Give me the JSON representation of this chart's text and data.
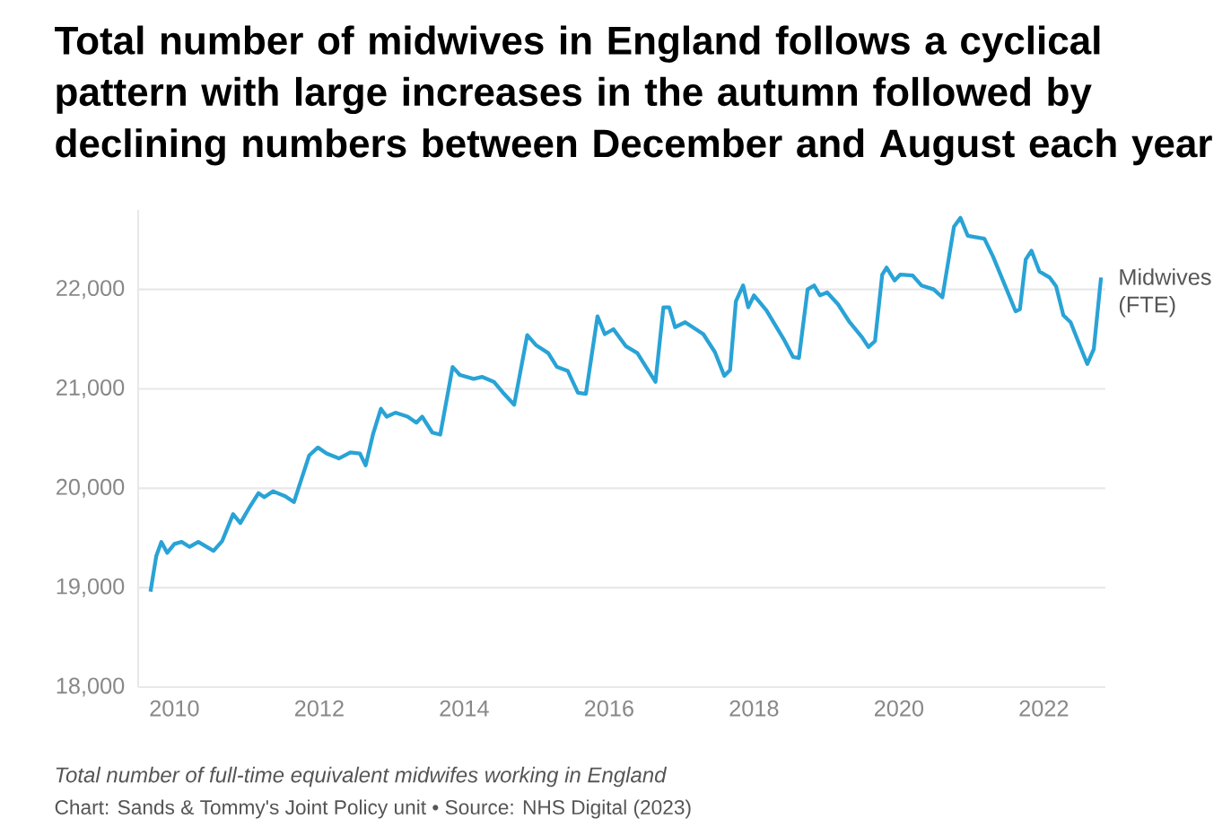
{
  "chart_data": {
    "type": "line",
    "title": "Total number of midwives in England follows a cyclical pattern with large increases in the autumn followed by declining numbers between December and August each year",
    "annotations": [
      "Total number of full-time equivalent midwifes working in England",
      "Chart: Sands & Tommy's Joint Policy unit • Source: NHS Digital (2023)"
    ],
    "x": [
      2009.67,
      2009.75,
      2009.82,
      2009.9,
      2010.0,
      2010.1,
      2010.21,
      2010.33,
      2010.54,
      2010.66,
      2010.81,
      2010.91,
      2011.03,
      2011.16,
      2011.24,
      2011.36,
      2011.53,
      2011.65,
      2011.73,
      2011.86,
      2011.98,
      2012.1,
      2012.27,
      2012.43,
      2012.56,
      2012.64,
      2012.74,
      2012.85,
      2012.93,
      2013.05,
      2013.22,
      2013.34,
      2013.42,
      2013.56,
      2013.67,
      2013.84,
      2013.94,
      2014.13,
      2014.25,
      2014.41,
      2014.55,
      2014.69,
      2014.87,
      2014.99,
      2015.16,
      2015.28,
      2015.43,
      2015.57,
      2015.68,
      2015.84,
      2015.94,
      2016.06,
      2016.23,
      2016.39,
      2016.51,
      2016.64,
      2016.75,
      2016.83,
      2016.91,
      2017.05,
      2017.3,
      2017.46,
      2017.59,
      2017.67,
      2017.75,
      2017.85,
      2017.92,
      2018.0,
      2018.17,
      2018.41,
      2018.54,
      2018.62,
      2018.74,
      2018.83,
      2018.91,
      2019.01,
      2019.16,
      2019.32,
      2019.49,
      2019.58,
      2019.67,
      2019.77,
      2019.83,
      2019.94,
      2020.02,
      2020.19,
      2020.31,
      2020.48,
      2020.6,
      2020.76,
      2020.85,
      2020.95,
      2021.18,
      2021.3,
      2021.47,
      2021.61,
      2021.67,
      2021.75,
      2021.83,
      2021.94,
      2022.08,
      2022.17,
      2022.27,
      2022.37,
      2022.5,
      2022.6,
      2022.69,
      2022.79
    ],
    "series": [
      {
        "name": "Midwives (FTE)",
        "color": "#29a3d6",
        "values": [
          18960,
          19320,
          19460,
          19350,
          19440,
          19460,
          19410,
          19460,
          19370,
          19470,
          19740,
          19650,
          19800,
          19950,
          19910,
          19970,
          19920,
          19860,
          20040,
          20330,
          20410,
          20350,
          20300,
          20360,
          20350,
          20230,
          20540,
          20800,
          20720,
          20760,
          20720,
          20660,
          20720,
          20560,
          20540,
          21220,
          21140,
          21100,
          21120,
          21070,
          20950,
          20840,
          21540,
          21440,
          21360,
          21220,
          21180,
          20960,
          20950,
          21730,
          21550,
          21600,
          21430,
          21360,
          21220,
          21070,
          21820,
          21820,
          21620,
          21670,
          21550,
          21370,
          21130,
          21190,
          21880,
          22040,
          21820,
          21940,
          21790,
          21500,
          21320,
          21310,
          22000,
          22040,
          21940,
          21970,
          21850,
          21670,
          21520,
          21420,
          21480,
          22150,
          22220,
          22090,
          22150,
          22140,
          22040,
          22000,
          21920,
          22630,
          22720,
          22540,
          22510,
          22330,
          22030,
          21780,
          21800,
          22300,
          22390,
          22180,
          22120,
          22030,
          21740,
          21670,
          21430,
          21250,
          21400,
          22120
        ]
      }
    ],
    "xlim": [
      2009.5,
      2022.85
    ],
    "ylim": [
      18000,
      22800
    ],
    "xticks": [
      2010,
      2012,
      2014,
      2016,
      2018,
      2020,
      2022
    ],
    "yticks": [
      {
        "value": 18000,
        "label": "18,000"
      },
      {
        "value": 19000,
        "label": "19,000"
      },
      {
        "value": 20000,
        "label": "20,000"
      },
      {
        "value": 21000,
        "label": "21,000"
      },
      {
        "value": 22000,
        "label": "22,000"
      }
    ],
    "grid": "y"
  }
}
